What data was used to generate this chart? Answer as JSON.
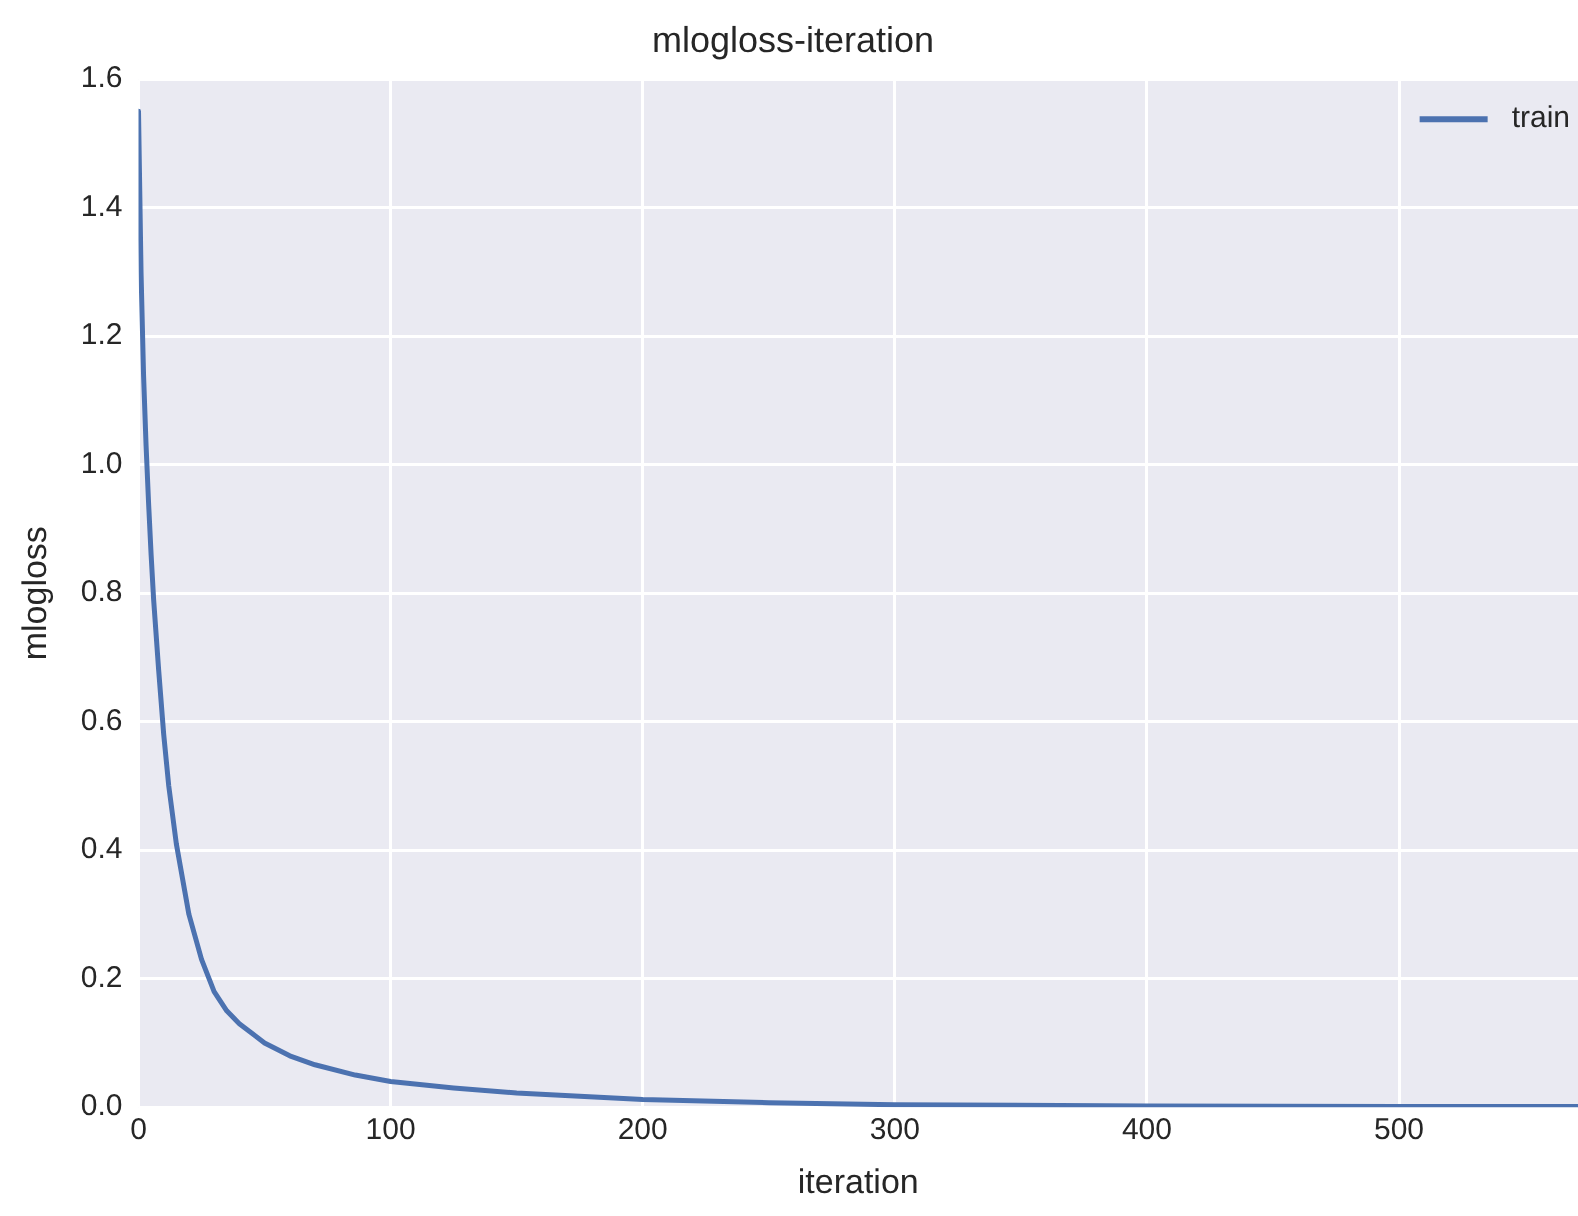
{
  "chart_data": {
    "type": "line",
    "title": "mlogloss-iteration",
    "xlabel": "iteration",
    "ylabel": "mlogloss",
    "x": [
      0,
      1,
      2,
      3,
      4,
      5,
      6,
      8,
      10,
      12,
      15,
      20,
      25,
      30,
      35,
      40,
      50,
      60,
      70,
      86,
      100,
      125,
      150,
      200,
      250,
      300,
      400,
      500,
      571
    ],
    "series": [
      {
        "name": "train",
        "color": "#4c72b0",
        "values": [
          1.55,
          1.3,
          1.14,
          1.03,
          0.94,
          0.86,
          0.79,
          0.68,
          0.58,
          0.5,
          0.41,
          0.3,
          0.23,
          0.18,
          0.15,
          0.13,
          0.1,
          0.08,
          0.066,
          0.05,
          0.04,
          0.03,
          0.022,
          0.012,
          0.007,
          0.004,
          0.002,
          0.001,
          0.001
        ]
      }
    ],
    "xlim": [
      0,
      571
    ],
    "xticks": [
      0,
      100,
      200,
      300,
      400,
      500
    ],
    "ylim": [
      0,
      1.6
    ],
    "yticks": [
      {
        "value": 0,
        "label": "0.0"
      },
      0.2,
      0.4,
      0.6,
      0.8,
      {
        "value": 1,
        "label": "1.0"
      },
      1.2,
      1.4,
      1.6
    ],
    "grid": true,
    "legend": "top right",
    "marker": "none",
    "line_style": "solid"
  }
}
